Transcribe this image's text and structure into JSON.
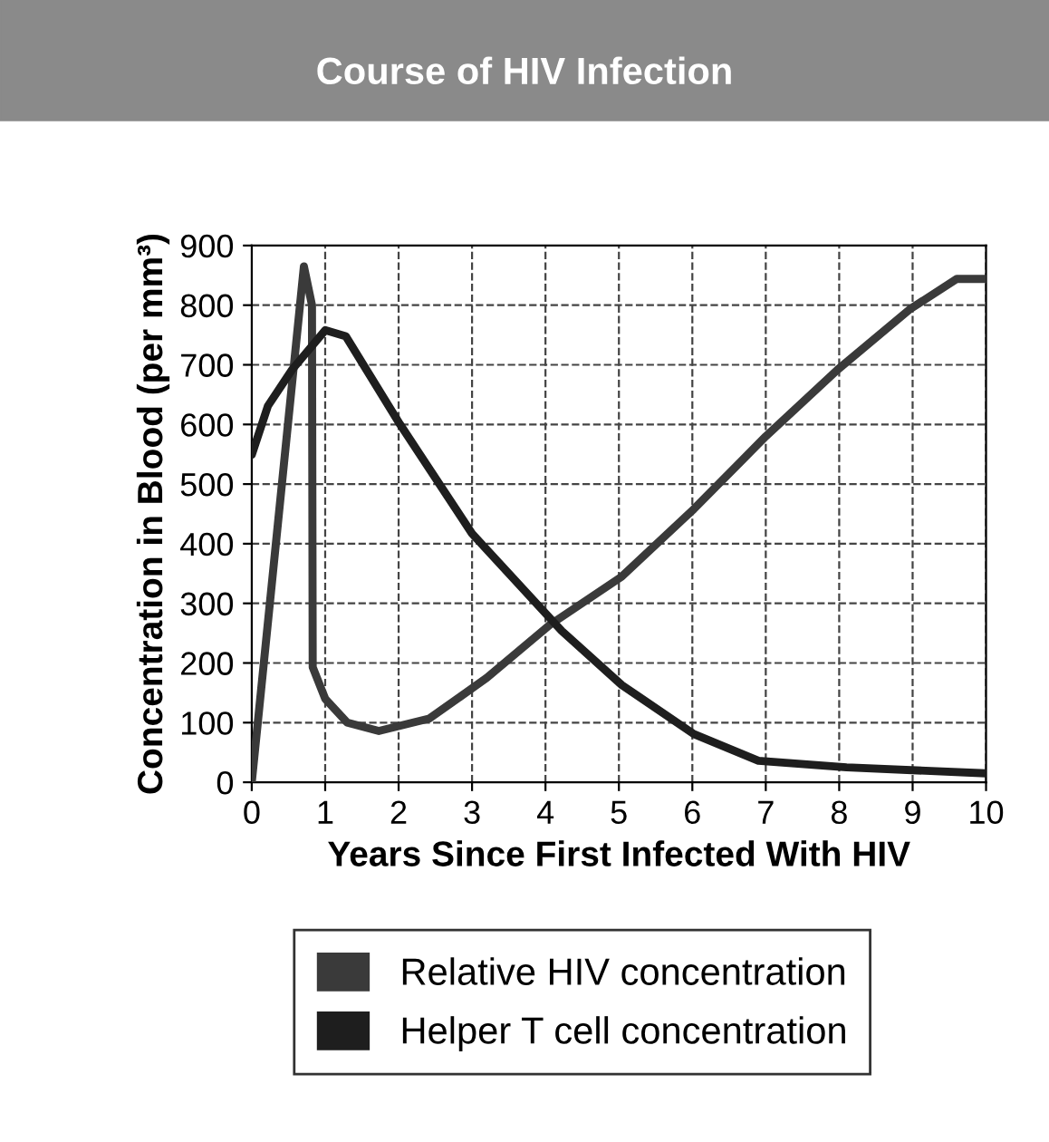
{
  "chart_data": {
    "type": "line",
    "title": "Course of HIV Infection",
    "xlabel": "Years Since First Infected With HIV",
    "ylabel": "Concentration in Blood (per mm³)",
    "xlim": [
      0,
      10
    ],
    "ylim": [
      0,
      900
    ],
    "xticks": [
      0,
      1,
      2,
      3,
      4,
      5,
      6,
      7,
      8,
      9,
      10
    ],
    "yticks": [
      0,
      100,
      200,
      300,
      400,
      500,
      600,
      700,
      800,
      900
    ],
    "grid": true,
    "legend": "bottom",
    "line_style": "solid",
    "marker": "none",
    "series": [
      {
        "name": "Relative HIV concentration",
        "color": "#3a3a3a",
        "x": [
          0,
          0.71,
          0.82,
          0.83,
          1.0,
          1.3,
          1.73,
          2.42,
          3.2,
          4.06,
          5.04,
          6.02,
          7.0,
          7.98,
          8.96,
          9.6,
          10
        ],
        "values": [
          0,
          865,
          800,
          193,
          140,
          100,
          86,
          107,
          175,
          264,
          345,
          458,
          580,
          692,
          793,
          844,
          844
        ]
      },
      {
        "name": "Helper T cell concentration",
        "color": "#1e1e1e",
        "x": [
          0,
          0.22,
          0.55,
          1.0,
          1.28,
          2.02,
          3.0,
          4.22,
          5.04,
          6.02,
          6.9,
          8.1,
          10
        ],
        "values": [
          549,
          631,
          692,
          758,
          748,
          600,
          417,
          254,
          163,
          81,
          36,
          25,
          15
        ]
      }
    ]
  }
}
